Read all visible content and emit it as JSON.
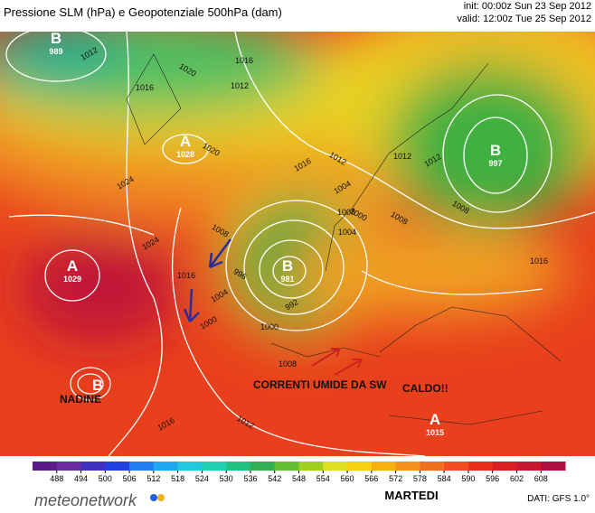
{
  "header": {
    "title": "Pressione SLM (hPa) e Geopotenziale 500hPa (dam)",
    "init": "init: 00:00z Sun 23 Sep 2012",
    "valid": "valid: 12:00z Tue 25 Sep 2012"
  },
  "centers": [
    {
      "letter": "B",
      "value": 989
    },
    {
      "letter": "A",
      "value": 1028
    },
    {
      "letter": "B",
      "value": 997
    },
    {
      "letter": "A",
      "value": 1029
    },
    {
      "letter": "B",
      "value": 981
    },
    {
      "letter": "A",
      "value": 1015
    }
  ],
  "nadine": {
    "letter": "B",
    "label": "NADINE"
  },
  "annotations": [
    "CORRENTI UMIDE DA SW",
    "CALDO!!"
  ],
  "isobar_labels": [
    1012,
    1016,
    1020,
    1024,
    1016,
    1020,
    1024,
    1016,
    1012,
    1004,
    1008,
    1000,
    1016,
    1012,
    1008,
    1004,
    1000,
    996,
    992,
    1004,
    1008,
    1000,
    1008,
    1012,
    1016,
    1012,
    1008,
    1012,
    1016
  ],
  "colorbar": {
    "ticks": [
      488,
      494,
      500,
      506,
      512,
      518,
      524,
      530,
      536,
      542,
      548,
      554,
      560,
      566,
      572,
      578,
      584,
      590,
      596,
      602,
      608
    ],
    "colors": [
      "#5a1a8a",
      "#6a2aa0",
      "#4030c0",
      "#2040e0",
      "#2080f0",
      "#20a8f0",
      "#20c8e0",
      "#20d0b0",
      "#20c080",
      "#30b050",
      "#60c030",
      "#a0d020",
      "#e0e020",
      "#f8d010",
      "#f8b010",
      "#f89020",
      "#f07020",
      "#f05020",
      "#e83018",
      "#d82020",
      "#c81830",
      "#b01040"
    ]
  },
  "footer": {
    "brand": "meteonetwork",
    "day": "MARTEDI",
    "source": "DATI: GFS 1.0°"
  }
}
